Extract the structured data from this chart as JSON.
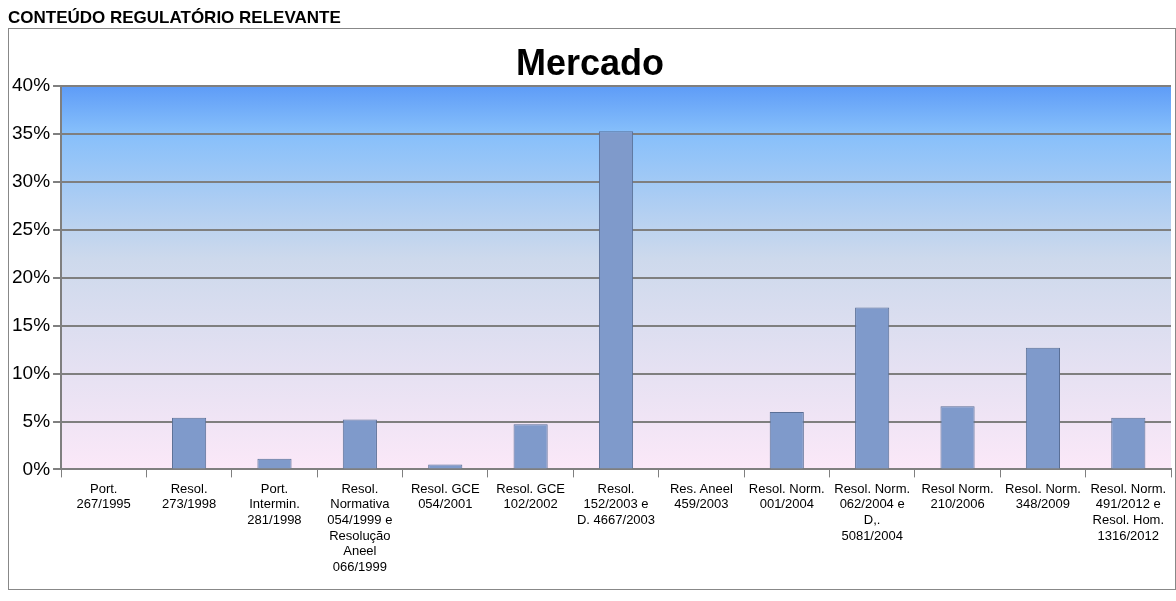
{
  "chart_data": {
    "type": "bar",
    "title": "Mercado",
    "annotations": [
      "CONTEÚDO REGULATÓRIO RELEVANTE"
    ],
    "categories": [
      "Port. 267/1995",
      "Resol. 273/1998",
      "Port. Intermin. 281/1998",
      "Resol. Normativa 054/1999 e Resolução Aneel 066/1999",
      "Resol. GCE 054/2001",
      "Resol. GCE 102/2002",
      "Resol. 152/2003 e D. 4667/2003",
      "Res. Aneel 459/2003",
      "Resol. Norm. 001/2004",
      "Resol. Norm. 062/2004 e D,. 5081/2004",
      "Resol Norm. 210/2006",
      "Resol. Norm. 348/2009",
      "Resol. Norm. 491/2012 e Resol. Hom. 1316/2012"
    ],
    "values": [
      0,
      5.4,
      1.1,
      5.2,
      0.5,
      4.7,
      35.3,
      0,
      6.0,
      16.9,
      6.6,
      12.7,
      5.4
    ],
    "color": "#7f9acb",
    "ylim": [
      0,
      40
    ],
    "yticks": [
      {
        "value": 0,
        "label": "0%"
      },
      {
        "value": 5,
        "label": "5%"
      },
      {
        "value": 10,
        "label": "10%"
      },
      {
        "value": 15,
        "label": "15%"
      },
      {
        "value": 20,
        "label": "20%"
      },
      {
        "value": 25,
        "label": "25%"
      },
      {
        "value": 30,
        "label": "30%"
      },
      {
        "value": 35,
        "label": "35%"
      },
      {
        "value": 40,
        "label": "40%"
      }
    ],
    "grid": "y",
    "legend": false
  }
}
